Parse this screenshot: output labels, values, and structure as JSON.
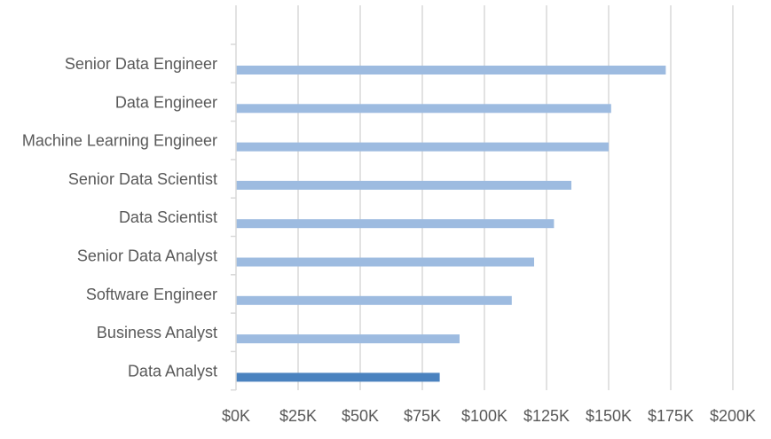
{
  "chart_data": {
    "type": "bar",
    "orientation": "horizontal",
    "title": "",
    "xlabel": "",
    "ylabel": "",
    "categories": [
      "Senior Data Engineer",
      "Data Engineer",
      "Machine Learning Engineer",
      "Senior Data Scientist",
      "Data Scientist",
      "Senior Data Analyst",
      "Software Engineer",
      "Business Analyst",
      "Data Analyst"
    ],
    "values": [
      173000,
      151000,
      150000,
      135000,
      128000,
      120000,
      111000,
      90000,
      82000
    ],
    "highlight_category": "Data Analyst",
    "xlim": [
      0,
      200000
    ],
    "x_ticks": [
      0,
      25000,
      50000,
      75000,
      100000,
      125000,
      150000,
      175000,
      200000
    ],
    "x_tick_labels": [
      "$0K",
      "$25K",
      "$50K",
      "$75K",
      "$100K",
      "$125K",
      "$150K",
      "$175K",
      "$200K"
    ],
    "grid": "vertical",
    "legend": "none",
    "colors": {
      "bar": "#9dbbe0",
      "highlight_bar": "#4a82bf",
      "grid": "#d9d9d9",
      "axis": "#d9d9d9",
      "text": "#595959"
    }
  }
}
